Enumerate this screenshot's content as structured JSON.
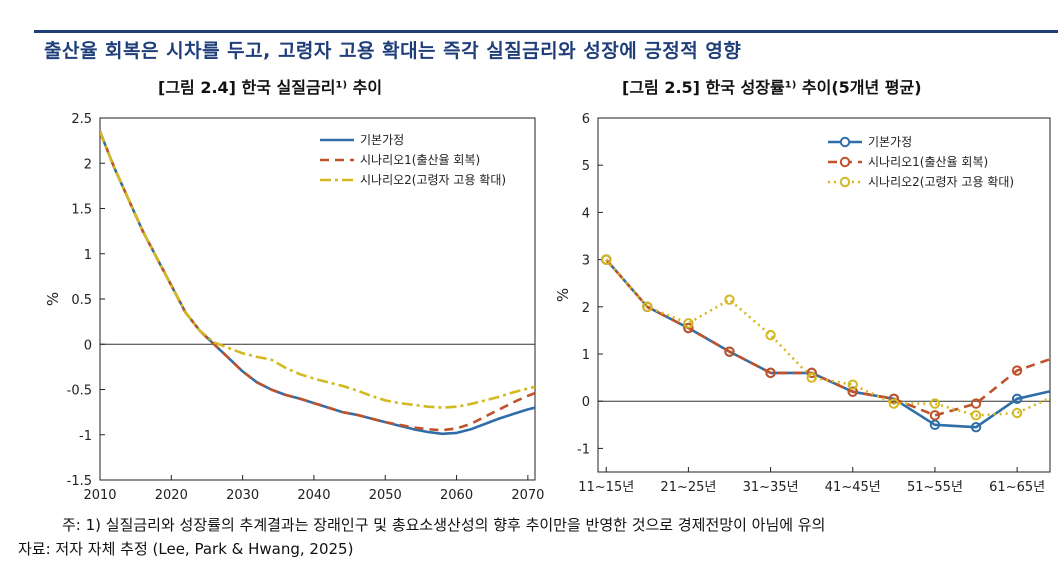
{
  "header": {
    "title": "출산율 회복은 시차를 두고, 고령자 고용 확대는 즉각 실질금리와 성장에 긍정적 영향"
  },
  "colors": {
    "base": "#2f6ea8",
    "scenario1": "#c0522b",
    "scenario2": "#d4b820",
    "title": "#1f3e7a"
  },
  "chart_data": [
    {
      "type": "line",
      "caption": "[그림 2.4] 한국 실질금리¹⁾ 추이",
      "ylabel": "%",
      "xlim": [
        2010,
        2071
      ],
      "ylim": [
        -1.5,
        2.5
      ],
      "x_ticks": [
        2010,
        2020,
        2030,
        2040,
        2050,
        2060,
        2070
      ],
      "x_tick_labels": [
        "2010",
        "2020",
        "2030",
        "2040",
        "2050",
        "2060",
        "2070"
      ],
      "y_ticks": [
        -1.5,
        -1,
        -0.5,
        0,
        0.5,
        1,
        1.5,
        2,
        2.5
      ],
      "y_tick_labels": [
        "-1.5",
        "-1",
        "-0.5",
        "0",
        "0.5",
        "1",
        "1.5",
        "2",
        "2.5"
      ],
      "grid": false,
      "legend_position": "top-right",
      "x": [
        2010,
        2012,
        2014,
        2016,
        2018,
        2020,
        2022,
        2024,
        2026,
        2028,
        2030,
        2032,
        2034,
        2036,
        2038,
        2040,
        2042,
        2044,
        2046,
        2048,
        2050,
        2052,
        2054,
        2056,
        2058,
        2060,
        2062,
        2064,
        2066,
        2068,
        2070,
        2071
      ],
      "series": [
        {
          "name": "기본가정",
          "style": "solid",
          "values": [
            2.35,
            1.95,
            1.6,
            1.25,
            0.95,
            0.65,
            0.35,
            0.15,
            0.0,
            -0.15,
            -0.3,
            -0.42,
            -0.5,
            -0.56,
            -0.6,
            -0.65,
            -0.7,
            -0.75,
            -0.78,
            -0.82,
            -0.86,
            -0.9,
            -0.94,
            -0.97,
            -0.99,
            -0.98,
            -0.94,
            -0.88,
            -0.82,
            -0.77,
            -0.72,
            -0.7
          ]
        },
        {
          "name": "시나리오1(출산율 회복)",
          "style": "dashed",
          "values": [
            2.35,
            1.95,
            1.6,
            1.25,
            0.95,
            0.65,
            0.35,
            0.15,
            0.0,
            -0.15,
            -0.3,
            -0.42,
            -0.5,
            -0.56,
            -0.6,
            -0.65,
            -0.7,
            -0.75,
            -0.78,
            -0.82,
            -0.86,
            -0.89,
            -0.92,
            -0.94,
            -0.95,
            -0.93,
            -0.88,
            -0.8,
            -0.72,
            -0.64,
            -0.57,
            -0.54
          ]
        },
        {
          "name": "시나리오2(고령자 고용 확대)",
          "style": "dashdot",
          "values": [
            2.35,
            1.95,
            1.6,
            1.25,
            0.95,
            0.65,
            0.35,
            0.15,
            0.02,
            -0.04,
            -0.1,
            -0.14,
            -0.17,
            -0.26,
            -0.33,
            -0.38,
            -0.42,
            -0.46,
            -0.51,
            -0.57,
            -0.62,
            -0.65,
            -0.67,
            -0.69,
            -0.7,
            -0.69,
            -0.66,
            -0.62,
            -0.58,
            -0.53,
            -0.49,
            -0.47
          ]
        }
      ]
    },
    {
      "type": "line",
      "caption": "[그림 2.5] 한국 성장률¹⁾ 추이(5개년 평균)",
      "ylabel": "%",
      "xlim": [
        0.8,
        11.8
      ],
      "ylim": [
        -1.5,
        6
      ],
      "x_ticks": [
        1,
        3,
        5,
        7,
        9,
        11
      ],
      "x_tick_labels": [
        "11~15년",
        "21~25년",
        "31~35년",
        "41~45년",
        "51~55년",
        "61~65년"
      ],
      "y_ticks": [
        -1,
        0,
        1,
        2,
        3,
        4,
        5,
        6
      ],
      "y_tick_labels": [
        "-1",
        "0",
        "1",
        "2",
        "3",
        "4",
        "5",
        "6"
      ],
      "grid": false,
      "legend_position": "top-right",
      "x": [
        1,
        2,
        3,
        4,
        5,
        6,
        7,
        8,
        9,
        10,
        11,
        12
      ],
      "series": [
        {
          "name": "기본가정",
          "style": "solid-circle",
          "values": [
            3.0,
            2.0,
            1.55,
            1.05,
            0.6,
            0.6,
            0.2,
            0.05,
            -0.5,
            -0.55,
            0.05,
            0.25
          ]
        },
        {
          "name": "시나리오1(출산율 회복)",
          "style": "dashed-circle",
          "values": [
            3.0,
            2.0,
            1.55,
            1.05,
            0.6,
            0.6,
            0.2,
            0.05,
            -0.3,
            -0.05,
            0.65,
            0.95
          ]
        },
        {
          "name": "시나리오2(고령자 고용 확대)",
          "style": "dotted-circle",
          "values": [
            3.0,
            2.0,
            1.65,
            2.15,
            1.4,
            0.5,
            0.35,
            -0.05,
            -0.05,
            -0.3,
            -0.25,
            0.15
          ]
        }
      ]
    }
  ],
  "notes": {
    "note1": "주: 1) 실질금리와 성장률의 추계결과는 장래인구 및 총요소생산성의 향후 추이만을 반영한 것으로 경제전망이 아님에 유의",
    "source": "자료: 저자 자체 추정 (Lee, Park & Hwang, 2025)"
  }
}
